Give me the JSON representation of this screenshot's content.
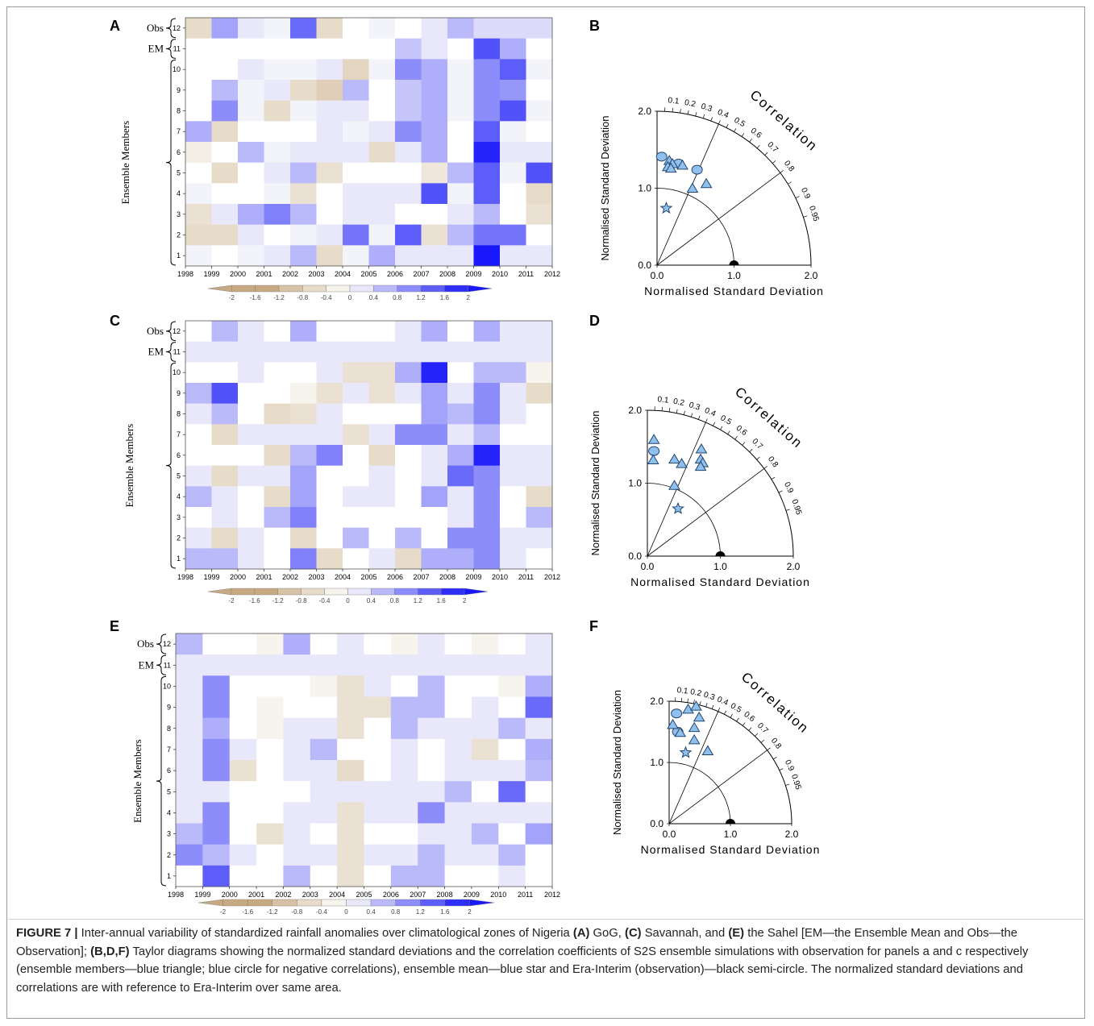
{
  "figure": {
    "panel_letters": [
      "A",
      "B",
      "C",
      "D",
      "E",
      "F"
    ],
    "caption": {
      "label": "FIGURE 7 |",
      "parts": [
        {
          "t": " Inter-annual variability of standardized rainfall anomalies over climatological zones of Nigeria ",
          "b": false
        },
        {
          "t": "(A)",
          "b": true
        },
        {
          "t": " GoG, ",
          "b": false
        },
        {
          "t": "(C)",
          "b": true
        },
        {
          "t": " Savannah, and ",
          "b": false
        },
        {
          "t": "(E)",
          "b": true
        },
        {
          "t": " the Sahel [EM—the Ensemble Mean and Obs—the Observation]; ",
          "b": false
        },
        {
          "t": "(B,D,F)",
          "b": true
        },
        {
          "t": " Taylor diagrams showing the normalized standard deviations and the correlation coefficients of S2S ensemble simulations with observation for panels a and c respectively (ensemble members—blue triangle; blue circle for negative correlations), ensemble mean—blue star and Era-Interim (observation)—black semi-circle. The normalized standard deviations and correlations are with reference to Era-Interim over same area.",
          "b": false
        }
      ]
    }
  },
  "chart_data": [
    {
      "type": "heatmap",
      "panel": "A",
      "x": [
        "1998",
        "1999",
        "2000",
        "2001",
        "2002",
        "2003",
        "2004",
        "2005",
        "2006",
        "2007",
        "2008",
        "2009",
        "2010",
        "2011",
        "2012"
      ],
      "y": [
        "1",
        "2",
        "3",
        "4",
        "5",
        "6",
        "7",
        "8",
        "9",
        "10",
        "11",
        "12"
      ],
      "row_group_labels": {
        "obs": "Obs",
        "em": "EM",
        "members": "Ensemble Members"
      },
      "colorbar_ticks": [
        "-2",
        "-1.6",
        "-1.2",
        "-0.8",
        "-0.4",
        "0",
        "0.4",
        "0.8",
        "1.2",
        "1.6",
        "2"
      ],
      "rows_top_to_bottom": [
        [
          -0.6,
          0.8,
          0.2,
          0.1,
          1.3,
          -0.6,
          0,
          0.1,
          0,
          0.2,
          0.6,
          0.3,
          0.3,
          0.3
        ],
        [
          0,
          0,
          0,
          0,
          0,
          0,
          0,
          0,
          0.5,
          0.2,
          0,
          1.5,
          0.7,
          0
        ],
        [
          0,
          0,
          0.2,
          0.1,
          0.1,
          0.2,
          -0.7,
          0.1,
          1.0,
          0.7,
          0.1,
          1.0,
          1.4,
          0.1
        ],
        [
          0,
          0.6,
          0.1,
          0.2,
          -0.6,
          -0.8,
          0.6,
          0,
          0.5,
          0.7,
          0.1,
          1.0,
          0.9,
          0
        ],
        [
          0,
          1.0,
          0.1,
          -0.6,
          0.1,
          0.2,
          0.2,
          0,
          0.5,
          0.7,
          0.1,
          1.0,
          1.5,
          0.1
        ],
        [
          0.7,
          -0.6,
          0,
          0,
          0,
          0.2,
          0.1,
          0.2,
          1.0,
          0.7,
          0,
          1.4,
          0.1,
          0
        ],
        [
          -0.3,
          0,
          0.6,
          0.1,
          0.2,
          0.2,
          0.2,
          -0.6,
          0.2,
          0.7,
          0,
          1.9,
          0.2,
          0.2
        ],
        [
          0,
          -0.6,
          0,
          0.2,
          0.6,
          -0.5,
          0,
          0,
          0,
          -0.4,
          0.6,
          1.4,
          0.1,
          1.5
        ],
        [
          0.1,
          0,
          0,
          0.1,
          -0.5,
          0,
          0.2,
          0.2,
          0.2,
          1.5,
          0.1,
          1.4,
          0,
          -0.6
        ],
        [
          -0.5,
          0.2,
          0.7,
          1.1,
          0.6,
          0,
          0.2,
          0.2,
          0,
          0,
          0.2,
          0.6,
          0,
          -0.5
        ],
        [
          -0.6,
          -0.6,
          0.2,
          0,
          0.1,
          0.2,
          1.2,
          0.1,
          1.4,
          -0.5,
          0.6,
          1.2,
          1.2,
          0
        ],
        [
          0.1,
          0,
          0.1,
          0.2,
          0.6,
          -0.6,
          0.1,
          0.7,
          0.2,
          0.2,
          0.2,
          2.0,
          0.2,
          0.2
        ]
      ]
    },
    {
      "type": "scatter",
      "panel": "B",
      "diagram": "taylor",
      "xlabel": "Normalised Standard Deviation",
      "ylabel": "Normalised Standard Deviation",
      "correlation_label": "Correlation",
      "max_std": 2.0,
      "std_ticks": [
        "0.0",
        "1.0",
        "2.0"
      ],
      "corr_ticks": [
        "0.1",
        "0.2",
        "0.3",
        "0.4",
        "0.5",
        "0.6",
        "0.7",
        "0.8",
        "0.9",
        "0.95"
      ],
      "points": [
        {
          "marker": "circle",
          "x": 0.06,
          "y": 1.41
        },
        {
          "marker": "circle",
          "x": 0.28,
          "y": 1.32
        },
        {
          "marker": "circle",
          "x": 0.52,
          "y": 1.24
        },
        {
          "marker": "triangle",
          "x": 0.16,
          "y": 1.36
        },
        {
          "marker": "triangle",
          "x": 0.2,
          "y": 1.32
        },
        {
          "marker": "triangle",
          "x": 0.14,
          "y": 1.28
        },
        {
          "marker": "triangle",
          "x": 0.18,
          "y": 1.26
        },
        {
          "marker": "triangle",
          "x": 0.33,
          "y": 1.3
        },
        {
          "marker": "triangle",
          "x": 0.64,
          "y": 1.06
        },
        {
          "marker": "triangle",
          "x": 0.46,
          "y": 1.0
        },
        {
          "marker": "star",
          "x": 0.12,
          "y": 0.74
        }
      ]
    },
    {
      "type": "heatmap",
      "panel": "C",
      "x": [
        "1998",
        "1999",
        "2000",
        "2001",
        "2002",
        "2003",
        "2004",
        "2005",
        "2006",
        "2007",
        "2008",
        "2009",
        "2010",
        "2011",
        "2012"
      ],
      "y": [
        "1",
        "2",
        "3",
        "4",
        "5",
        "6",
        "7",
        "8",
        "9",
        "10",
        "11",
        "12"
      ],
      "row_group_labels": {
        "obs": "Obs",
        "em": "EM",
        "members": "Ensemble Members"
      },
      "colorbar_ticks": [
        "-2",
        "-1.6",
        "-1.2",
        "-0.8",
        "-0.4",
        "0",
        "0.4",
        "0.8",
        "1.2",
        "1.6",
        "2"
      ],
      "rows_top_to_bottom": [
        [
          0,
          0.6,
          0.2,
          0,
          0.7,
          0,
          0,
          0,
          0.2,
          0.7,
          0,
          0.7,
          0.2,
          0.2
        ],
        [
          0.2,
          0.2,
          0.2,
          0.2,
          0.2,
          0.2,
          0.2,
          0.2,
          0.2,
          0.2,
          0.2,
          0.2,
          0.2,
          0.2
        ],
        [
          0,
          0,
          0.2,
          0,
          0,
          0.2,
          -0.5,
          -0.5,
          0.7,
          1.9,
          0,
          0.6,
          0.6,
          -0.2
        ],
        [
          0.6,
          1.5,
          0,
          0,
          -0.2,
          -0.5,
          0.2,
          -0.5,
          0.2,
          0.8,
          0.2,
          1.0,
          0.2,
          -0.6
        ],
        [
          0.2,
          0.6,
          0,
          -0.6,
          -0.5,
          0.2,
          0,
          0,
          0,
          0.8,
          0.6,
          1.0,
          0.2,
          0
        ],
        [
          0,
          -0.6,
          0.2,
          0.2,
          0.2,
          0.2,
          -0.5,
          0.2,
          1.0,
          1.0,
          0.2,
          0.6,
          0,
          0
        ],
        [
          0,
          0,
          0,
          -0.6,
          0.6,
          1.1,
          0,
          -0.6,
          0,
          0.2,
          0.7,
          1.9,
          0.2,
          0.2
        ],
        [
          0.2,
          -0.6,
          0.2,
          0.2,
          0.8,
          0,
          0,
          0.2,
          0,
          0.2,
          1.3,
          1.0,
          0.2,
          0.2
        ],
        [
          0.6,
          0.2,
          0,
          -0.6,
          0.8,
          0,
          0.2,
          0.2,
          0,
          0.8,
          0.2,
          1.0,
          0,
          -0.6
        ],
        [
          0,
          0.2,
          0,
          0.6,
          1.1,
          0,
          0,
          0,
          0,
          0,
          0.2,
          1.0,
          0,
          0.6
        ],
        [
          0.2,
          -0.6,
          0.2,
          0,
          -0.6,
          0,
          0.6,
          0,
          0.6,
          0,
          1.0,
          1.0,
          0.2,
          0.2
        ],
        [
          0.6,
          0.6,
          0.2,
          0,
          1.1,
          -0.6,
          0,
          0.2,
          -0.6,
          0.7,
          0.7,
          1.0,
          0.2,
          0
        ]
      ]
    },
    {
      "type": "scatter",
      "panel": "D",
      "diagram": "taylor",
      "xlabel": "Normalised Standard Deviation",
      "ylabel": "Normalised Standard Deviation",
      "correlation_label": "Correlation",
      "max_std": 2.0,
      "std_ticks": [
        "0.0",
        "1.0",
        "2.0"
      ],
      "corr_ticks": [
        "0.1",
        "0.2",
        "0.3",
        "0.4",
        "0.5",
        "0.6",
        "0.7",
        "0.8",
        "0.9",
        "0.95"
      ],
      "points": [
        {
          "marker": "circle",
          "x": 0.09,
          "y": 1.44
        },
        {
          "marker": "triangle",
          "x": 0.09,
          "y": 1.6
        },
        {
          "marker": "triangle",
          "x": 0.08,
          "y": 1.32
        },
        {
          "marker": "triangle",
          "x": 0.37,
          "y": 1.33
        },
        {
          "marker": "triangle",
          "x": 0.47,
          "y": 1.27
        },
        {
          "marker": "triangle",
          "x": 0.74,
          "y": 1.47
        },
        {
          "marker": "triangle",
          "x": 0.73,
          "y": 1.33
        },
        {
          "marker": "triangle",
          "x": 0.76,
          "y": 1.28
        },
        {
          "marker": "triangle",
          "x": 0.73,
          "y": 1.23
        },
        {
          "marker": "triangle",
          "x": 0.37,
          "y": 0.97
        },
        {
          "marker": "star",
          "x": 0.42,
          "y": 0.65
        }
      ]
    },
    {
      "type": "heatmap",
      "panel": "E",
      "x": [
        "1998",
        "1999",
        "2000",
        "2001",
        "2002",
        "2003",
        "2004",
        "2005",
        "2006",
        "2007",
        "2008",
        "2009",
        "2010",
        "2011",
        "2012"
      ],
      "y": [
        "1",
        "2",
        "3",
        "4",
        "5",
        "6",
        "7",
        "8",
        "9",
        "10",
        "11",
        "12"
      ],
      "row_group_labels": {
        "obs": "Obs",
        "em": "EM",
        "members": "Ensemble Members"
      },
      "colorbar_ticks": [
        "-2",
        "-1.6",
        "-1.2",
        "-0.8",
        "-0.4",
        "0",
        "0.4",
        "0.8",
        "1.2",
        "1.6",
        "2"
      ],
      "rows_top_to_bottom": [
        [
          0.6,
          0,
          0,
          -0.2,
          0.7,
          0,
          0.2,
          0,
          -0.2,
          0.2,
          0,
          -0.2,
          0,
          0.2
        ],
        [
          0.2,
          0.2,
          0.2,
          0.2,
          0.2,
          0.2,
          0.2,
          0.2,
          0.2,
          0.2,
          0.2,
          0.2,
          0.2,
          0.2
        ],
        [
          0.2,
          1.0,
          0,
          0,
          0,
          -0.2,
          -0.5,
          0.2,
          0,
          0.6,
          0,
          0,
          -0.2,
          0.7
        ],
        [
          0.2,
          1.0,
          0,
          -0.2,
          0,
          0,
          -0.5,
          -0.5,
          0.6,
          0.6,
          0,
          0.2,
          0,
          1.3
        ],
        [
          0.2,
          0.7,
          0,
          -0.2,
          0.2,
          0.2,
          -0.5,
          0,
          0.6,
          0.2,
          0.2,
          0.2,
          0.6,
          0.2
        ],
        [
          0.2,
          1.0,
          0.2,
          0,
          0.2,
          0.6,
          0,
          0,
          0.2,
          0,
          0.2,
          -0.5,
          0,
          0.7
        ],
        [
          0.2,
          1.0,
          -0.5,
          0,
          0.2,
          0.2,
          -0.6,
          0,
          0.2,
          0,
          0.2,
          0.2,
          0.2,
          0.6
        ],
        [
          0.2,
          0.2,
          0,
          0,
          0,
          0.2,
          0.2,
          0.2,
          0.2,
          0.2,
          0.6,
          0,
          1.3,
          0
        ],
        [
          0.2,
          1.0,
          0,
          0,
          0.2,
          0.2,
          -0.5,
          0.2,
          0.2,
          1.0,
          0.2,
          0.2,
          0.2,
          0.2
        ],
        [
          0.6,
          1.0,
          0,
          -0.5,
          0.2,
          0,
          -0.5,
          0,
          0,
          0.2,
          0.2,
          0.6,
          0,
          0.8
        ],
        [
          1.0,
          0.6,
          0.2,
          0,
          0.2,
          0.2,
          -0.5,
          0.2,
          0.2,
          0.6,
          0.2,
          0.2,
          0.6,
          0
        ],
        [
          0,
          1.4,
          0,
          0,
          0.6,
          0,
          -0.5,
          0,
          0.6,
          0.6,
          0,
          0,
          0.2,
          0
        ]
      ]
    },
    {
      "type": "scatter",
      "panel": "F",
      "diagram": "taylor",
      "xlabel": "Normalised Standard Deviation",
      "ylabel": "Normalised Standard Deviation",
      "correlation_label": "Correlation",
      "max_std": 2.0,
      "std_ticks": [
        "0.0",
        "1.0",
        "2.0"
      ],
      "corr_ticks": [
        "0.1",
        "0.2",
        "0.3",
        "0.4",
        "0.5",
        "0.6",
        "0.7",
        "0.8",
        "0.9",
        "0.95"
      ],
      "points": [
        {
          "marker": "circle",
          "x": 0.12,
          "y": 1.8
        },
        {
          "marker": "circle",
          "x": 0.14,
          "y": 1.5
        },
        {
          "marker": "triangle",
          "x": 0.06,
          "y": 1.62
        },
        {
          "marker": "triangle",
          "x": 0.18,
          "y": 1.49
        },
        {
          "marker": "triangle",
          "x": 0.31,
          "y": 1.87
        },
        {
          "marker": "triangle",
          "x": 0.44,
          "y": 1.92
        },
        {
          "marker": "triangle",
          "x": 0.49,
          "y": 1.74
        },
        {
          "marker": "triangle",
          "x": 0.41,
          "y": 1.57
        },
        {
          "marker": "triangle",
          "x": 0.41,
          "y": 1.37
        },
        {
          "marker": "triangle",
          "x": 0.63,
          "y": 1.19
        },
        {
          "marker": "star",
          "x": 0.27,
          "y": 1.16
        }
      ]
    }
  ]
}
